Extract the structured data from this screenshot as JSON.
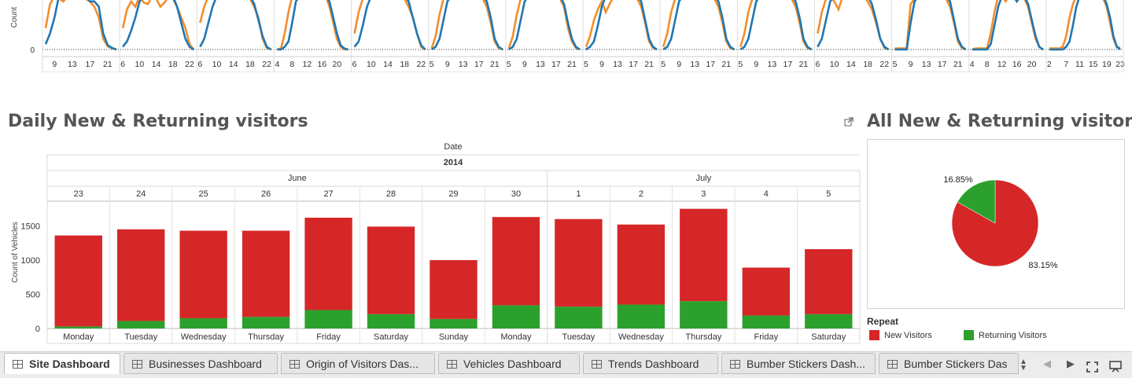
{
  "top_chart": {
    "type": "line",
    "ylabel": "Count",
    "zero_tick": "0",
    "series_colors": [
      "#f28e2b",
      "#1f77b4"
    ],
    "panels": [
      {
        "ticks": [
          "9",
          "13",
          "17",
          "21"
        ],
        "x": [
          7,
          8,
          9,
          10,
          11,
          12,
          13,
          14,
          15,
          16,
          17,
          18,
          19,
          20,
          21,
          22,
          23
        ],
        "s1": [
          40,
          85,
          100,
          95,
          90,
          100,
          100,
          100,
          100,
          95,
          90,
          80,
          60,
          20,
          6,
          2,
          0
        ],
        "s2": [
          10,
          30,
          60,
          100,
          100,
          100,
          100,
          100,
          100,
          100,
          90,
          90,
          80,
          30,
          8,
          3,
          0
        ]
      },
      {
        "ticks": [
          "6",
          "10",
          "14",
          "18",
          "22"
        ],
        "x": [
          6,
          7,
          8,
          9,
          10,
          11,
          12,
          13,
          14,
          15,
          16,
          17,
          18,
          19,
          20,
          21,
          22,
          23
        ],
        "s1": [
          40,
          75,
          90,
          80,
          100,
          88,
          85,
          100,
          95,
          80,
          88,
          100,
          95,
          80,
          60,
          40,
          10,
          0
        ],
        "s2": [
          5,
          15,
          35,
          60,
          90,
          100,
          100,
          100,
          100,
          100,
          100,
          100,
          100,
          80,
          50,
          20,
          5,
          0
        ]
      },
      {
        "ticks": [
          "6",
          "10",
          "14",
          "18",
          "22"
        ],
        "x": [
          6,
          7,
          8,
          9,
          10,
          11,
          12,
          13,
          14,
          15,
          16,
          17,
          18,
          19,
          20,
          21,
          22,
          23
        ],
        "s1": [
          50,
          80,
          100,
          100,
          95,
          100,
          100,
          100,
          100,
          100,
          100,
          100,
          95,
          80,
          60,
          20,
          3,
          0
        ],
        "s2": [
          5,
          20,
          50,
          80,
          100,
          100,
          100,
          100,
          100,
          100,
          100,
          100,
          100,
          85,
          55,
          25,
          5,
          0
        ]
      },
      {
        "ticks": [
          "4",
          "8",
          "12",
          "16",
          "20"
        ],
        "x": [
          4,
          5,
          6,
          7,
          8,
          9,
          10,
          11,
          12,
          13,
          14,
          15,
          16,
          17,
          18,
          19,
          20,
          21,
          22,
          23
        ],
        "s1": [
          0,
          2,
          30,
          70,
          100,
          100,
          100,
          100,
          100,
          100,
          100,
          100,
          100,
          100,
          80,
          50,
          20,
          5,
          0,
          0
        ],
        "s2": [
          0,
          0,
          5,
          15,
          50,
          90,
          100,
          100,
          100,
          100,
          100,
          100,
          100,
          100,
          90,
          60,
          30,
          8,
          2,
          0
        ]
      },
      {
        "ticks": [
          "6",
          "10",
          "14",
          "18",
          "22"
        ],
        "x": [
          6,
          7,
          8,
          9,
          10,
          11,
          12,
          13,
          14,
          15,
          16,
          17,
          18,
          19,
          20,
          21,
          22,
          23
        ],
        "s1": [
          30,
          70,
          95,
          100,
          100,
          100,
          100,
          100,
          100,
          100,
          100,
          100,
          95,
          80,
          60,
          30,
          5,
          0
        ],
        "s2": [
          5,
          15,
          45,
          80,
          100,
          100,
          100,
          100,
          100,
          100,
          100,
          100,
          100,
          90,
          60,
          30,
          8,
          0
        ]
      },
      {
        "ticks": [
          "5",
          "9",
          "13",
          "17",
          "21"
        ],
        "x": [
          5,
          6,
          7,
          8,
          9,
          10,
          11,
          12,
          13,
          14,
          15,
          16,
          17,
          18,
          19,
          20,
          21,
          22,
          23
        ],
        "s1": [
          2,
          25,
          65,
          95,
          100,
          100,
          100,
          100,
          100,
          100,
          100,
          100,
          100,
          95,
          80,
          50,
          15,
          3,
          0
        ],
        "s2": [
          0,
          5,
          20,
          55,
          90,
          100,
          100,
          100,
          100,
          100,
          100,
          100,
          100,
          100,
          90,
          60,
          20,
          5,
          0
        ]
      },
      {
        "ticks": [
          "5",
          "9",
          "13",
          "17",
          "21"
        ],
        "x": [
          5,
          6,
          7,
          8,
          9,
          10,
          11,
          12,
          13,
          14,
          15,
          16,
          17,
          18,
          19,
          20,
          21,
          22,
          23
        ],
        "s1": [
          2,
          25,
          65,
          95,
          100,
          100,
          100,
          100,
          100,
          100,
          100,
          100,
          100,
          95,
          80,
          40,
          15,
          3,
          0
        ],
        "s2": [
          0,
          5,
          20,
          55,
          90,
          100,
          100,
          100,
          100,
          100,
          100,
          100,
          100,
          100,
          85,
          50,
          20,
          5,
          0
        ]
      },
      {
        "ticks": [
          "5",
          "9",
          "13",
          "17",
          "21"
        ],
        "x": [
          5,
          6,
          7,
          8,
          9,
          10,
          11,
          12,
          13,
          14,
          15,
          16,
          17,
          18,
          19,
          20,
          21,
          22,
          23
        ],
        "s1": [
          5,
          25,
          55,
          75,
          90,
          70,
          85,
          100,
          95,
          100,
          100,
          100,
          100,
          95,
          80,
          50,
          15,
          3,
          0
        ],
        "s2": [
          0,
          5,
          15,
          45,
          80,
          100,
          100,
          100,
          100,
          100,
          100,
          100,
          100,
          100,
          90,
          55,
          20,
          5,
          0
        ]
      },
      {
        "ticks": [
          "5",
          "9",
          "13",
          "17",
          "21"
        ],
        "x": [
          5,
          6,
          7,
          8,
          9,
          10,
          11,
          12,
          13,
          14,
          15,
          16,
          17,
          18,
          19,
          20,
          21,
          22,
          23
        ],
        "s1": [
          5,
          30,
          70,
          95,
          100,
          100,
          100,
          100,
          100,
          100,
          100,
          100,
          100,
          95,
          80,
          50,
          15,
          3,
          0
        ],
        "s2": [
          0,
          5,
          20,
          55,
          90,
          100,
          100,
          100,
          100,
          100,
          100,
          100,
          100,
          100,
          90,
          60,
          20,
          5,
          0
        ]
      },
      {
        "ticks": [
          "5",
          "9",
          "13",
          "17",
          "21"
        ],
        "x": [
          5,
          6,
          7,
          8,
          9,
          10,
          11,
          12,
          13,
          14,
          15,
          16,
          17,
          18,
          19,
          20,
          21,
          22,
          23
        ],
        "s1": [
          5,
          30,
          70,
          95,
          100,
          100,
          100,
          100,
          100,
          100,
          100,
          100,
          100,
          95,
          80,
          50,
          15,
          3,
          0
        ],
        "s2": [
          0,
          5,
          20,
          55,
          90,
          100,
          100,
          100,
          100,
          100,
          100,
          100,
          100,
          100,
          90,
          60,
          20,
          5,
          0
        ]
      },
      {
        "ticks": [
          "6",
          "10",
          "14",
          "18",
          "22"
        ],
        "x": [
          6,
          7,
          8,
          9,
          10,
          11,
          12,
          13,
          14,
          15,
          16,
          17,
          18,
          19,
          20,
          21,
          22,
          23
        ],
        "s1": [
          30,
          70,
          95,
          100,
          90,
          75,
          100,
          100,
          95,
          100,
          100,
          100,
          90,
          75,
          50,
          20,
          3,
          0
        ],
        "s2": [
          5,
          20,
          55,
          90,
          100,
          100,
          100,
          100,
          100,
          100,
          100,
          100,
          100,
          85,
          55,
          20,
          5,
          0
        ]
      },
      {
        "ticks": [
          "5",
          "9",
          "13",
          "17",
          "21"
        ],
        "x": [
          5,
          6,
          7,
          8,
          9,
          10,
          11,
          12,
          13,
          14,
          15,
          16,
          17,
          18,
          19,
          20,
          21,
          22,
          23
        ],
        "s1": [
          2,
          2,
          2,
          2,
          85,
          95,
          100,
          100,
          100,
          100,
          100,
          100,
          100,
          95,
          80,
          50,
          15,
          3,
          0
        ],
        "s2": [
          0,
          0,
          0,
          0,
          50,
          90,
          100,
          100,
          100,
          100,
          100,
          100,
          100,
          100,
          90,
          55,
          20,
          5,
          0
        ]
      },
      {
        "ticks": [
          "4",
          "8",
          "12",
          "16",
          "20"
        ],
        "x": [
          4,
          5,
          6,
          7,
          8,
          9,
          10,
          11,
          12,
          13,
          14,
          15,
          16,
          17,
          18,
          19,
          20,
          21,
          22,
          23
        ],
        "s1": [
          0,
          2,
          2,
          2,
          2,
          30,
          70,
          100,
          100,
          90,
          100,
          100,
          100,
          100,
          95,
          80,
          50,
          20,
          5,
          0
        ],
        "s2": [
          0,
          0,
          0,
          0,
          0,
          10,
          45,
          80,
          100,
          100,
          100,
          100,
          90,
          100,
          100,
          85,
          55,
          25,
          5,
          0
        ]
      },
      {
        "ticks": [
          "2",
          "7",
          "11",
          "15",
          "19",
          "23"
        ],
        "x": [
          2,
          3,
          4,
          5,
          6,
          7,
          8,
          9,
          10,
          11,
          12,
          13,
          14,
          15,
          16,
          17,
          18,
          19,
          20,
          21,
          22,
          23
        ],
        "s1": [
          2,
          2,
          2,
          2,
          5,
          25,
          60,
          85,
          100,
          100,
          100,
          100,
          100,
          100,
          100,
          100,
          95,
          80,
          50,
          20,
          5,
          3
        ],
        "s2": [
          0,
          0,
          0,
          0,
          0,
          5,
          15,
          45,
          80,
          100,
          100,
          100,
          100,
          100,
          100,
          100,
          100,
          85,
          60,
          25,
          5,
          0
        ]
      }
    ]
  },
  "daily": {
    "title": "Daily New & Returning visitors",
    "header_field": "Date",
    "year": "2014",
    "months": [
      {
        "label": "June",
        "span": 8
      },
      {
        "label": "July",
        "span": 5
      }
    ],
    "ylabel": "Count of Vehicles",
    "chart_data": {
      "type": "bar",
      "stacked": true,
      "categories": [
        "23",
        "24",
        "25",
        "26",
        "27",
        "28",
        "29",
        "30",
        "1",
        "2",
        "3",
        "4",
        "5"
      ],
      "weekdays": [
        "Monday",
        "Tuesday",
        "Wednesday",
        "Thursday",
        "Friday",
        "Saturday",
        "Sunday",
        "Monday",
        "Tuesday",
        "Wednesday",
        "Thursday",
        "Friday",
        "Saturday"
      ],
      "series": [
        {
          "name": "Returning Visitors",
          "color": "#2ca02c",
          "values": [
            30,
            110,
            150,
            170,
            270,
            210,
            140,
            340,
            320,
            350,
            400,
            190,
            210
          ]
        },
        {
          "name": "New Visitors",
          "color": "#d62728",
          "values": [
            1330,
            1340,
            1280,
            1260,
            1350,
            1280,
            860,
            1290,
            1280,
            1170,
            1350,
            700,
            950
          ]
        }
      ],
      "yticks": [
        "0",
        "500",
        "1000",
        "1500"
      ],
      "ylim": [
        0,
        1850
      ],
      "grid": false
    }
  },
  "pie": {
    "title": "All New & Returning visitors",
    "chart_data": {
      "type": "pie",
      "slices": [
        {
          "name": "New Visitors",
          "value": 83.15,
          "label": "83.15%",
          "color": "#d62728"
        },
        {
          "name": "Returning Visitors",
          "value": 16.85,
          "label": "16.85%",
          "color": "#2ca02c"
        }
      ]
    },
    "legend_title": "Repeat",
    "legend": [
      {
        "label": "New Visitors",
        "color": "#d62728"
      },
      {
        "label": "Returning Visitors",
        "color": "#2ca02c"
      }
    ]
  },
  "tabs": [
    {
      "label": "Site Dashboard",
      "active": true
    },
    {
      "label": "Businesses Dashboard",
      "active": false
    },
    {
      "label": "Origin of Visitors Das...",
      "active": false
    },
    {
      "label": "Vehicles Dashboard",
      "active": false
    },
    {
      "label": "Trends Dashboard",
      "active": false
    },
    {
      "label": "Bumber Stickers Dash...",
      "active": false
    },
    {
      "label": "Bumber Stickers Das",
      "active": false
    }
  ],
  "icons": {
    "popout": "external-link-icon",
    "sort": "sort-arrows-icon",
    "prev": "chevron-left-icon",
    "next": "chevron-right-icon",
    "fullscreen": "fullscreen-icon",
    "present": "presentation-icon"
  }
}
